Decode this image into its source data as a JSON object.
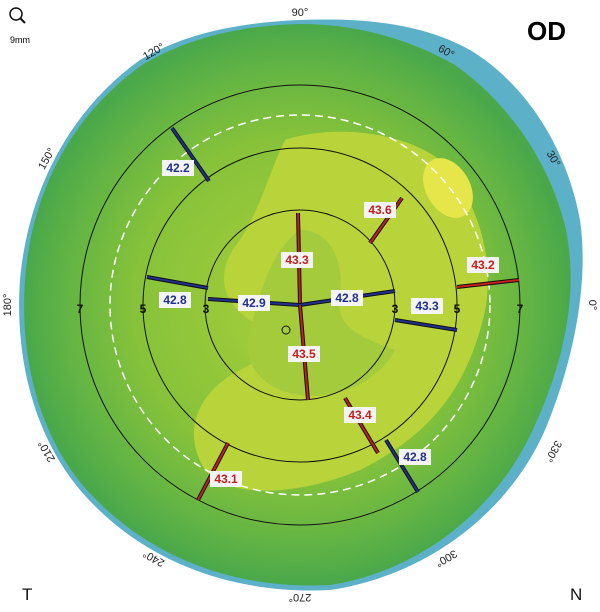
{
  "header": {
    "eye": "OD",
    "scale": "9mm"
  },
  "sides": {
    "left": "T",
    "right": "N"
  },
  "angles": [
    "90°",
    "60°",
    "30°",
    "0°",
    "330°",
    "300°",
    "270°",
    "240°",
    "210°",
    "180°",
    "150°",
    "120°"
  ],
  "rings": [
    "7",
    "5",
    "3",
    "3",
    "5",
    "7"
  ],
  "readings": [
    {
      "value": "42.2",
      "kind": "flat"
    },
    {
      "value": "43.6",
      "kind": "steep"
    },
    {
      "value": "43.2",
      "kind": "steep"
    },
    {
      "value": "43.3",
      "kind": "steep"
    },
    {
      "value": "42.8",
      "kind": "flat"
    },
    {
      "value": "42.9",
      "kind": "flat"
    },
    {
      "value": "42.8",
      "kind": "flat"
    },
    {
      "value": "43.3",
      "kind": "flat"
    },
    {
      "value": "43.5",
      "kind": "steep"
    },
    {
      "value": "43.4",
      "kind": "steep"
    },
    {
      "value": "42.8",
      "kind": "flat"
    },
    {
      "value": "43.1",
      "kind": "steep"
    }
  ]
}
